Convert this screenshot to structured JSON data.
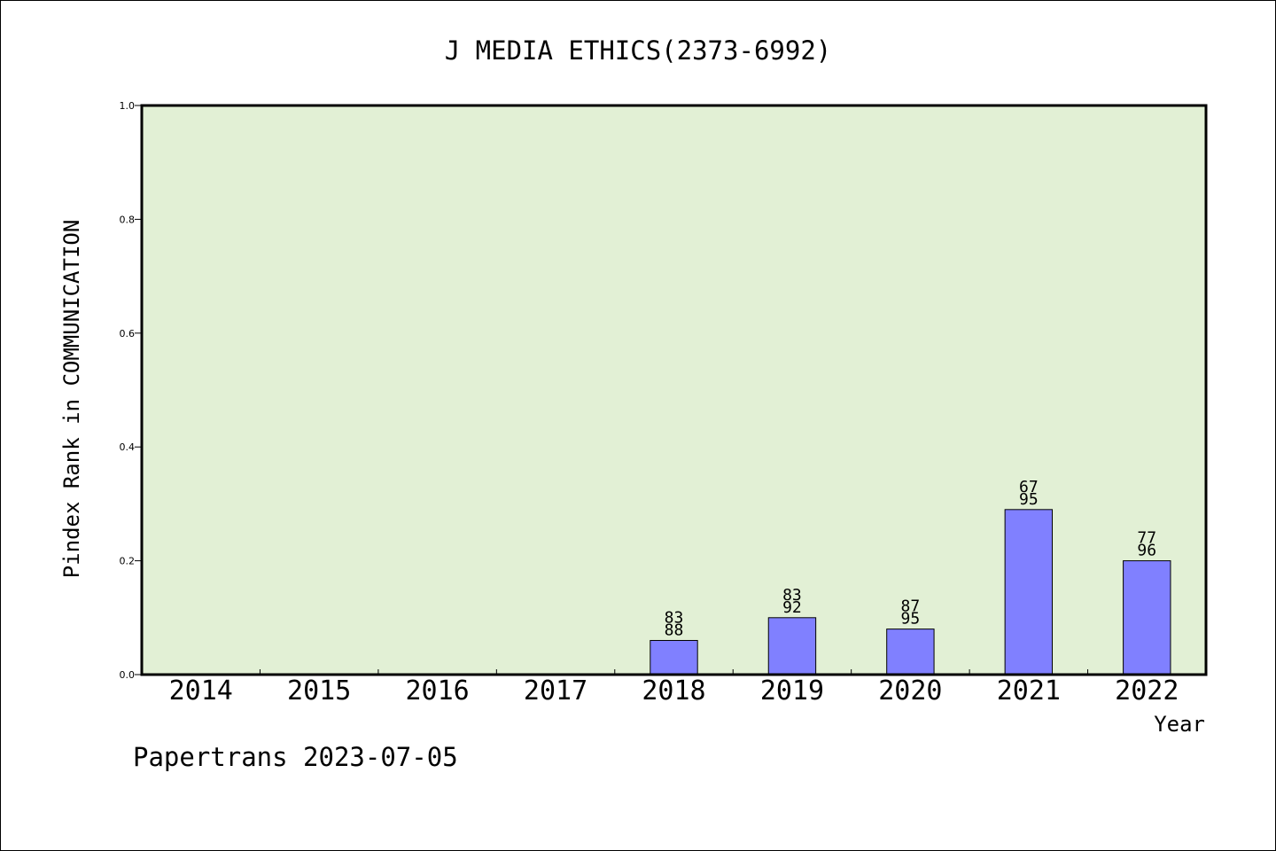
{
  "chart_data": {
    "type": "bar",
    "title": "J MEDIA ETHICS(2373-6992)",
    "ylabel": "Pindex Rank in COMMUNICATION",
    "xlabel": "Year",
    "ylim": [
      0,
      1.0
    ],
    "yticks": [
      "0.0",
      "0.2",
      "0.4",
      "0.6",
      "0.8",
      "1.0"
    ],
    "categories": [
      "2014",
      "2015",
      "2016",
      "2017",
      "2018",
      "2019",
      "2020",
      "2021",
      "2022"
    ],
    "values": [
      null,
      null,
      null,
      null,
      0.06,
      0.1,
      0.08,
      0.29,
      0.2
    ],
    "bar_labels": [
      null,
      null,
      null,
      null,
      {
        "rank": "83",
        "total": "88"
      },
      {
        "rank": "83",
        "total": "92"
      },
      {
        "rank": "87",
        "total": "95"
      },
      {
        "rank": "67",
        "total": "95"
      },
      {
        "rank": "77",
        "total": "96"
      }
    ],
    "colors": {
      "plot_bg": "#e2f0d5",
      "bar": "#8080ff"
    },
    "grid": false
  },
  "footer": "Papertrans 2023-07-05"
}
